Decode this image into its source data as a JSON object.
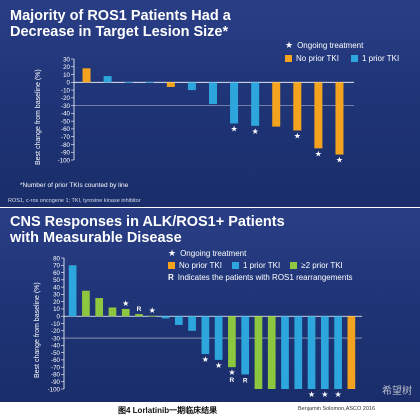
{
  "colors": {
    "orange": "#f3a31d",
    "blue": "#2ca6dc",
    "green": "#8dc63f",
    "panel": "#21377a",
    "text": "#ffffff",
    "refline": "#c8cbd6"
  },
  "panel1": {
    "title_line1": "Majority of ROS1 Patients Had a",
    "title_line2": "Decrease in Target Lesion Size*",
    "legend": {
      "star_label": "Ongoing treatment",
      "items": [
        "No prior TKI",
        "1 prior TKI"
      ]
    },
    "footnote": "*Number of prior TKIs counted by line",
    "abbrev": "ROS1, c-ros oncogene 1; TKI, tyrosine kinase inhibitor"
  },
  "panel2": {
    "title_line1": "CNS Responses in ALK/ROS1+ Patients",
    "title_line2": "with Measurable Disease",
    "legend": {
      "star_label": "Ongoing treatment",
      "items": [
        "No prior TKI",
        "1 prior TKI",
        "≥2 prior TKI"
      ],
      "r_note": "Indicates the patients with ROS1 rearrangements"
    }
  },
  "caption": "图4 Lorlatinib一期临床结果",
  "credit": "Benjamin Solomon,ASCO 2016",
  "watermark": "希望树",
  "chart_data": [
    {
      "type": "bar",
      "title": "Majority of ROS1 Patients Had a Decrease in Target Lesion Size*",
      "ylabel": "Best change from baseline (%)",
      "ylim": [
        -100,
        30
      ],
      "yticks": [
        30,
        20,
        10,
        0,
        -10,
        -20,
        -30,
        -40,
        -50,
        -60,
        -70,
        -80,
        -90,
        -100
      ],
      "reference_line": -30,
      "series": [
        {
          "name": "No prior TKI",
          "points": [
            [
              1,
              18
            ],
            [
              5,
              -6
            ],
            [
              10,
              -57
            ],
            [
              11,
              -62
            ],
            [
              12,
              -85
            ],
            [
              13,
              -93
            ]
          ]
        },
        {
          "name": "1 prior TKI",
          "points": [
            [
              2,
              8
            ],
            [
              3,
              1
            ],
            [
              4,
              -1
            ],
            [
              6,
              -10
            ],
            [
              7,
              -28
            ],
            [
              8,
              -53
            ],
            [
              9,
              -56
            ]
          ]
        }
      ],
      "ongoing_treatment_bars": [
        8,
        9,
        11,
        12,
        13
      ],
      "legend_position": "top-right"
    },
    {
      "type": "bar",
      "title": "CNS Responses in ALK/ROS1+ Patients with Measurable Disease",
      "ylabel": "Best change from baseline (%)",
      "ylim": [
        -100,
        80
      ],
      "yticks": [
        80,
        70,
        60,
        50,
        40,
        30,
        20,
        10,
        0,
        -10,
        -20,
        -30,
        -40,
        -50,
        -60,
        -70,
        -80,
        -90,
        -100
      ],
      "reference_line": -30,
      "series": [
        {
          "name": "No prior TKI",
          "points": [
            [
              22,
              -100
            ]
          ]
        },
        {
          "name": "1 prior TKI",
          "points": [
            [
              1,
              70
            ],
            [
              8,
              -3
            ],
            [
              9,
              -12
            ],
            [
              10,
              -20
            ],
            [
              11,
              -52
            ],
            [
              12,
              -60
            ],
            [
              14,
              -80
            ],
            [
              17,
              -100
            ],
            [
              18,
              -100
            ],
            [
              19,
              -100
            ],
            [
              20,
              -100
            ],
            [
              21,
              -100
            ]
          ]
        },
        {
          "name": "≥2 prior TKI",
          "points": [
            [
              2,
              35
            ],
            [
              3,
              25
            ],
            [
              4,
              12
            ],
            [
              5,
              10
            ],
            [
              6,
              3
            ],
            [
              7,
              0
            ],
            [
              13,
              -70
            ],
            [
              15,
              -100
            ],
            [
              16,
              -100
            ]
          ]
        }
      ],
      "ongoing_treatment_bars": [
        5,
        7,
        11,
        12,
        13,
        19,
        20,
        21
      ],
      "ros1_bars": [
        6,
        13,
        14
      ],
      "legend_position": "top-right"
    }
  ]
}
